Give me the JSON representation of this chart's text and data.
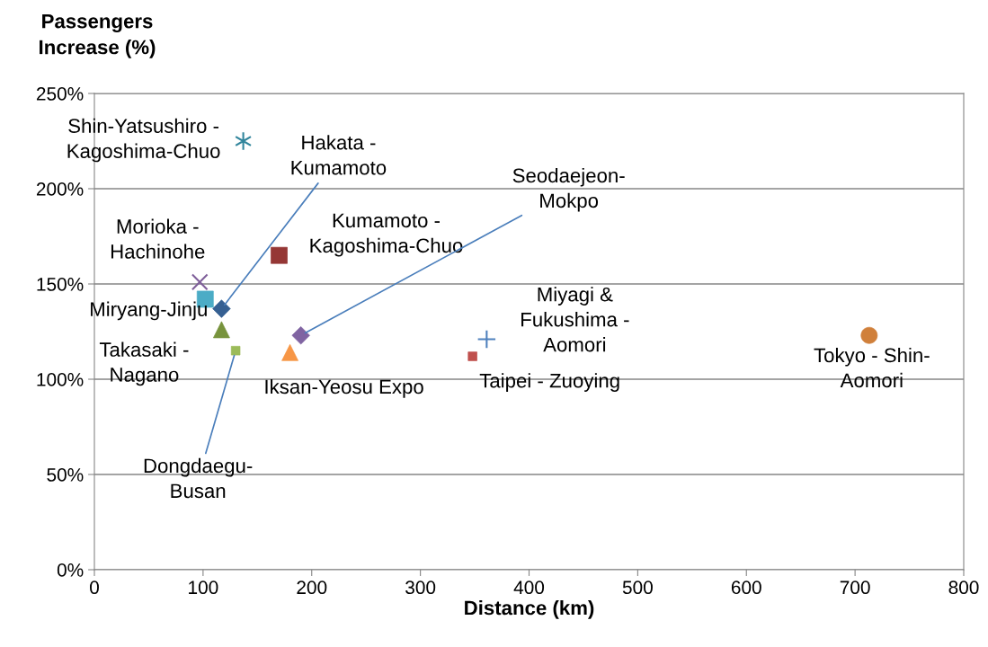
{
  "chart_data": {
    "type": "scatter",
    "xlabel": "Distance (km)",
    "ylabel": "Passengers\nIncrease (%)",
    "xlim": [
      0,
      800
    ],
    "xticks": [
      0,
      100,
      200,
      300,
      400,
      500,
      600,
      700,
      800
    ],
    "ylim": [
      0,
      250
    ],
    "yticks": [
      {
        "value": 0,
        "label": "0%"
      },
      {
        "value": 50,
        "label": "50%"
      },
      {
        "value": 100,
        "label": "100%"
      },
      {
        "value": 150,
        "label": "150%"
      },
      {
        "value": 200,
        "label": "200%"
      },
      {
        "value": 250,
        "label": "250%"
      }
    ],
    "grid": "y",
    "legend": false,
    "series": [
      {
        "name": "Shin-Yatsushiro -\nKagoshima-Chuo",
        "color": "#31859c",
        "marker": "cross",
        "x": [
          137
        ],
        "values": [
          225
        ]
      },
      {
        "name": "Kumamoto -\nKagoshima-Chuo",
        "color": "#953735",
        "marker": "square",
        "x": [
          170
        ],
        "values": [
          165
        ]
      },
      {
        "name": "Morioka -\nHachinohe",
        "color": "#7f5f9a",
        "marker": "cross",
        "x": [
          97
        ],
        "values": [
          151
        ]
      },
      {
        "name": "Miryang-Jinju",
        "color": "#4bacc6",
        "marker": "square",
        "x": [
          102
        ],
        "values": [
          142
        ]
      },
      {
        "name": "Hakata -\nKumamoto",
        "color": "#366092",
        "marker": "diamond",
        "x": [
          117
        ],
        "values": [
          137
        ]
      },
      {
        "name": "Takasaki -\nNagano",
        "color": "#77933c",
        "marker": "triangle",
        "x": [
          117
        ],
        "values": [
          126
        ]
      },
      {
        "name": "Dongdaegu-\nBusan",
        "color": "#9bbb59",
        "marker": "square",
        "x": [
          130
        ],
        "values": [
          115
        ]
      },
      {
        "name": "Iksan-Yeosu Expo",
        "color": "#f79646",
        "marker": "triangle",
        "x": [
          180
        ],
        "values": [
          114
        ]
      },
      {
        "name": "Seodaejeon-\nMokpo",
        "color": "#8064a2",
        "marker": "diamond",
        "x": [
          190
        ],
        "values": [
          123
        ]
      },
      {
        "name": "Taipei - Zuoying",
        "color": "#c0504d",
        "marker": "square",
        "x": [
          348
        ],
        "values": [
          112
        ]
      },
      {
        "name": "Miyagi &\nFukushima -\nAomori",
        "color": "#4f81bd",
        "marker": "plus",
        "x": [
          361
        ],
        "values": [
          121
        ]
      },
      {
        "name": "Tokyo - Shin-\nAomori",
        "color": "#d0803b",
        "marker": "circle",
        "x": [
          713
        ],
        "values": [
          123
        ]
      }
    ]
  }
}
